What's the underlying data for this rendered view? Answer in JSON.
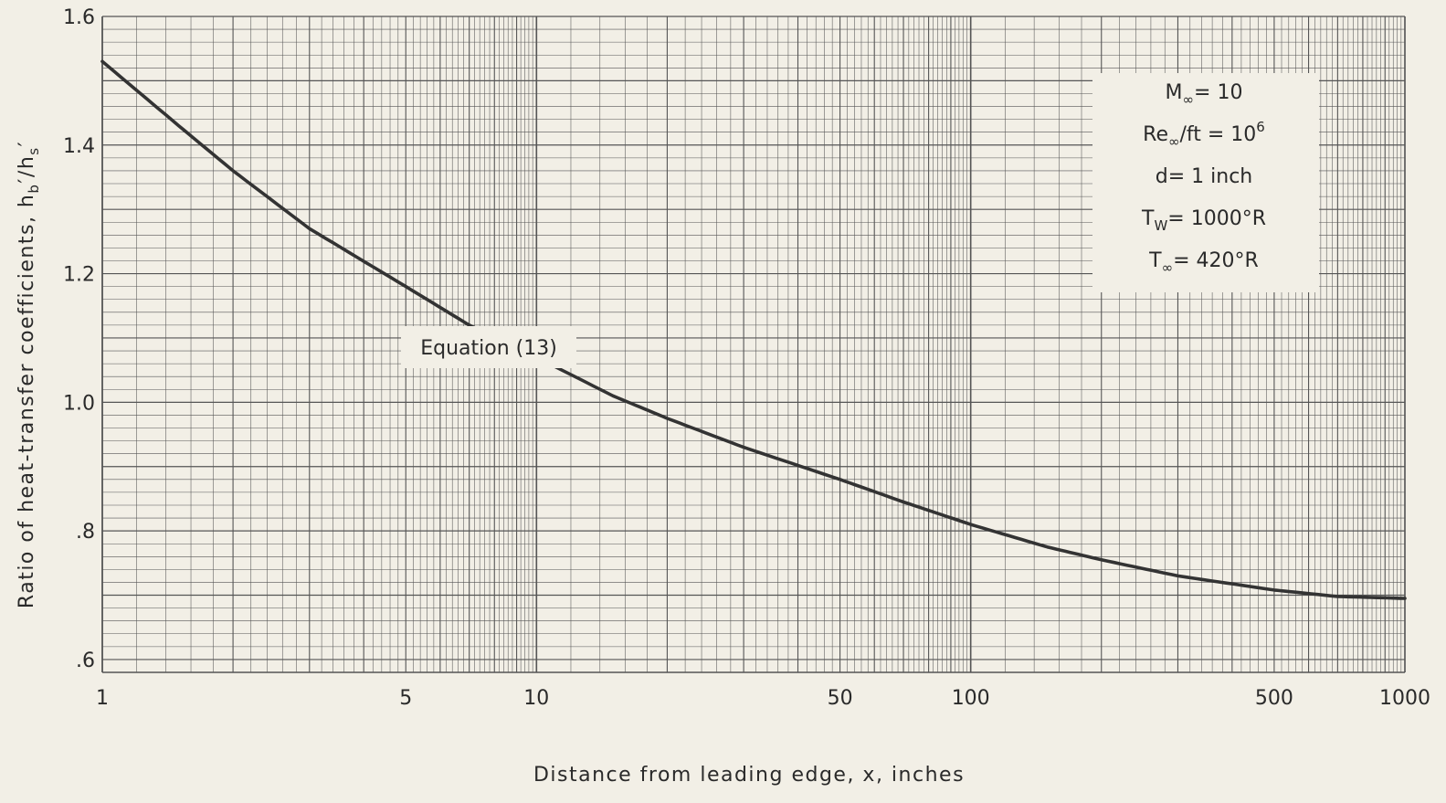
{
  "chart_data": {
    "type": "line",
    "xscale": "log",
    "xlim": [
      1,
      1000
    ],
    "ylim": [
      0.58,
      1.6
    ],
    "grid": true,
    "xlabel": "Distance  from  leading  edge, x,  inches",
    "ylabel_main": "Ratio  of  heat-transfer  coefficients,  h",
    "ylabel_sub1": "b",
    "ylabel_mid": "′/h",
    "ylabel_sub2": "s",
    "ylabel_end": "′",
    "x_ticks": [
      {
        "value": 1,
        "label": "1"
      },
      {
        "value": 5,
        "label": "5"
      },
      {
        "value": 10,
        "label": "10"
      },
      {
        "value": 50,
        "label": "50"
      },
      {
        "value": 100,
        "label": "100"
      },
      {
        "value": 500,
        "label": "500"
      },
      {
        "value": 1000,
        "label": "1000"
      }
    ],
    "y_ticks": [
      {
        "value": 0.6,
        "label": ".6"
      },
      {
        "value": 0.8,
        "label": ".8"
      },
      {
        "value": 1.0,
        "label": "1.0"
      },
      {
        "value": 1.2,
        "label": "1.2"
      },
      {
        "value": 1.4,
        "label": "1.4"
      },
      {
        "value": 1.6,
        "label": "1.6"
      }
    ],
    "series": [
      {
        "x": [
          1,
          1.5,
          2,
          3,
          5,
          7,
          10,
          15,
          20,
          30,
          50,
          70,
          100,
          150,
          200,
          300,
          500,
          700,
          1000
        ],
        "y": [
          1.53,
          1.43,
          1.36,
          1.27,
          1.18,
          1.12,
          1.07,
          1.01,
          0.975,
          0.93,
          0.88,
          0.845,
          0.81,
          0.775,
          0.755,
          0.73,
          0.708,
          0.698,
          0.695
        ]
      }
    ],
    "annotations": {
      "equation_label": "Equation (13)",
      "equation_x": 12,
      "params": [
        {
          "main": "M",
          "sub": "∞",
          "rest": "= 10"
        },
        {
          "main": "Re",
          "sub": "∞",
          "rest": "/ft = 10",
          "sup": "6"
        },
        {
          "main": "d",
          "sub": "",
          "rest": "= 1 inch"
        },
        {
          "main": "T",
          "sub": "W",
          "rest": "= 1000°R"
        },
        {
          "main": "T",
          "sub": "∞",
          "rest": "=  420°R"
        }
      ]
    }
  },
  "colors": {
    "background": "#f2efe6",
    "grid": "#555555",
    "curve": "#333333"
  }
}
